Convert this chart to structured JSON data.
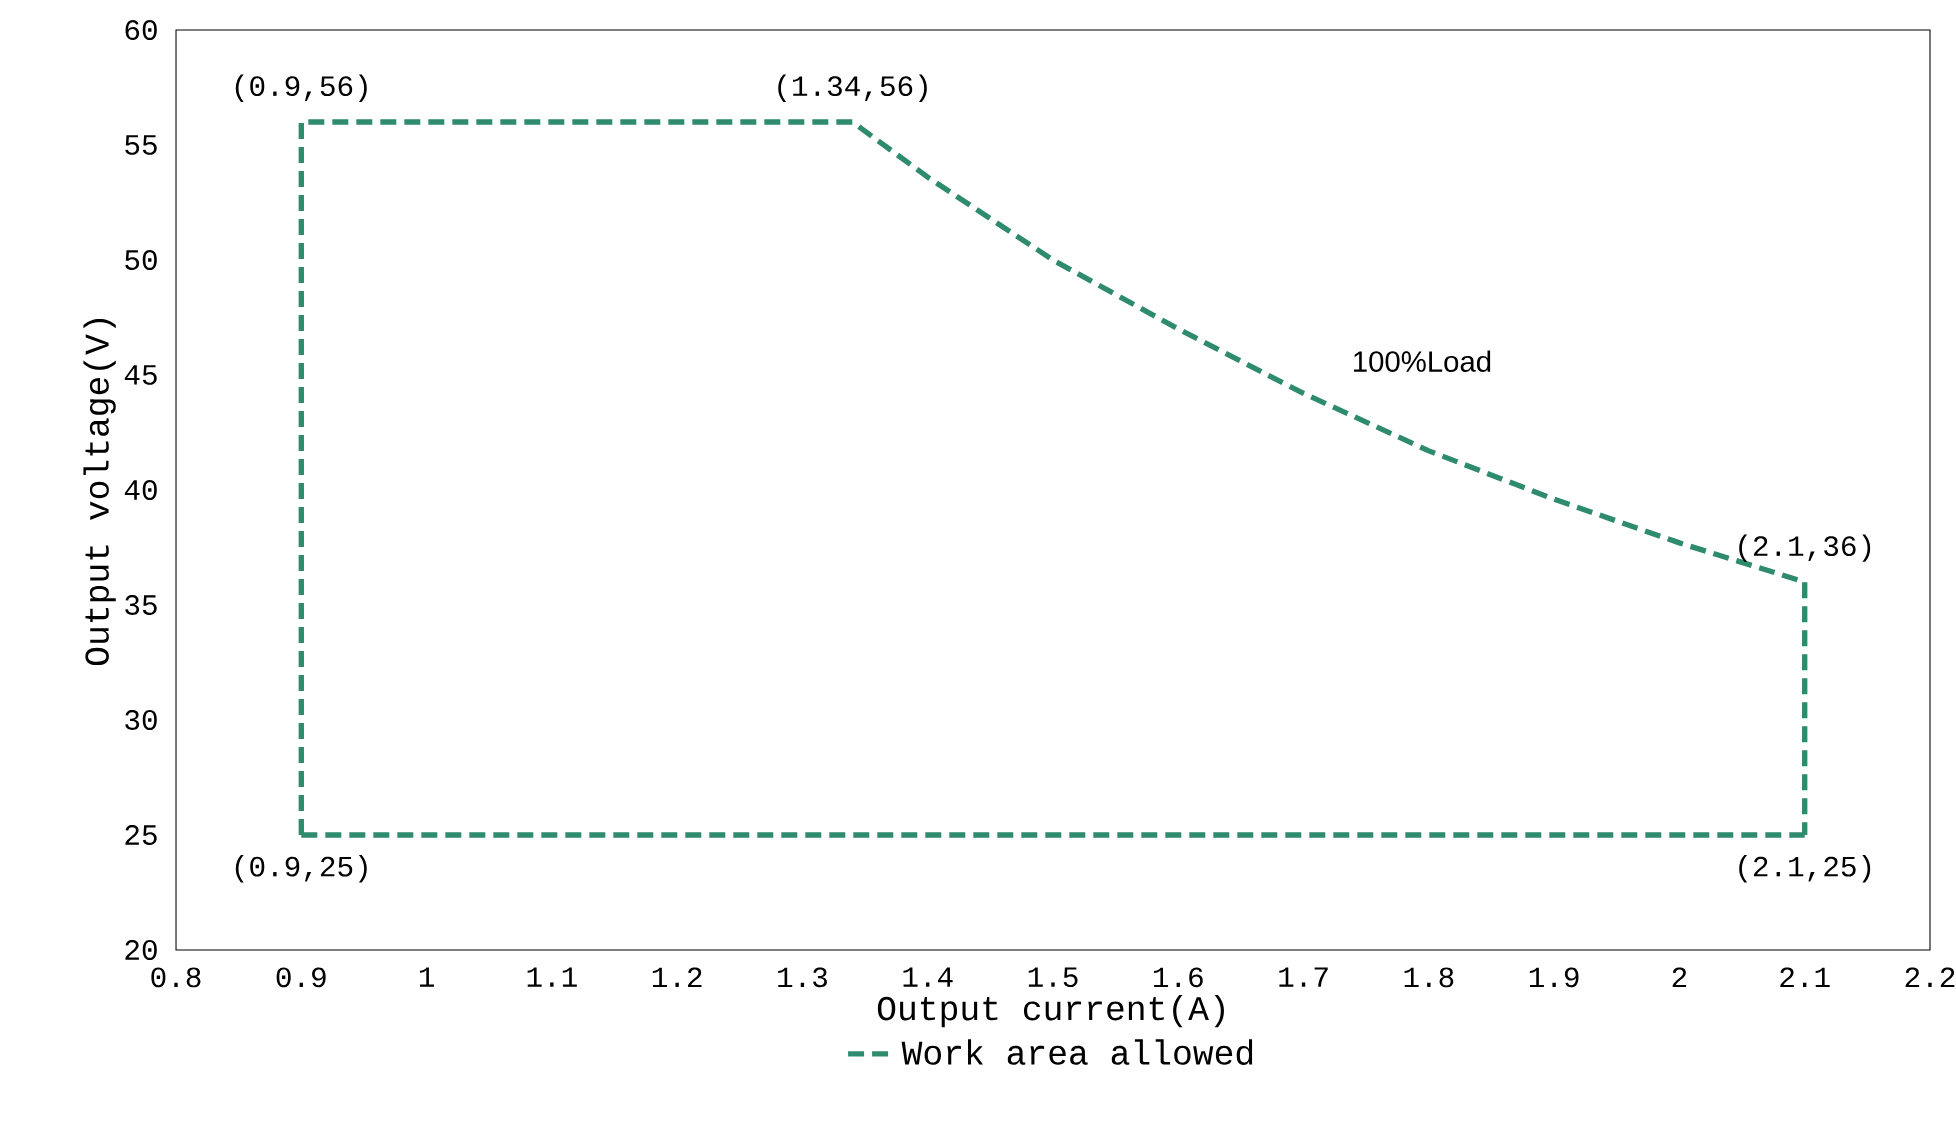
{
  "chart_data": {
    "type": "line",
    "xlabel": "Output current(A)",
    "ylabel": "Output voltage(V)",
    "series": [
      {
        "name": "Work area allowed",
        "color": "#2e8b6e",
        "x": [
          0.9,
          0.9,
          1.34,
          1.4,
          1.5,
          1.6,
          1.7,
          1.8,
          1.9,
          2.0,
          2.1,
          2.1
        ],
        "values": [
          25,
          56,
          56,
          53.6,
          50,
          47,
          44.2,
          41.7,
          39.6,
          37.7,
          36,
          25
        ]
      },
      {
        "color": "#2e8b6e",
        "x": [
          0.9,
          2.1
        ],
        "values": [
          25,
          25
        ]
      }
    ],
    "line_style": "dashed",
    "marker": "none",
    "legend": "bottom",
    "grid": false,
    "xlim": [
      0.8,
      2.2
    ],
    "ylim": [
      20,
      60
    ],
    "xticks": [
      0.8,
      0.9,
      1,
      1.1,
      1.2,
      1.3,
      1.4,
      1.5,
      1.6,
      1.7,
      1.8,
      1.9,
      2,
      2.1,
      2.2
    ],
    "yticks": [
      20,
      25,
      30,
      35,
      40,
      45,
      50,
      55,
      60
    ],
    "annotations": [
      {
        "text": "(0.9,56)",
        "x": 0.9,
        "y": 56
      },
      {
        "text": "(1.34,56)",
        "x": 1.34,
        "y": 56
      },
      "100%Load",
      {
        "text": "(2.1,36)",
        "x": 2.1,
        "y": 36
      },
      {
        "text": "(0.9,25)",
        "x": 0.9,
        "y": 25
      },
      {
        "text": "(2.1,25)",
        "x": 2.1,
        "y": 25
      }
    ]
  }
}
